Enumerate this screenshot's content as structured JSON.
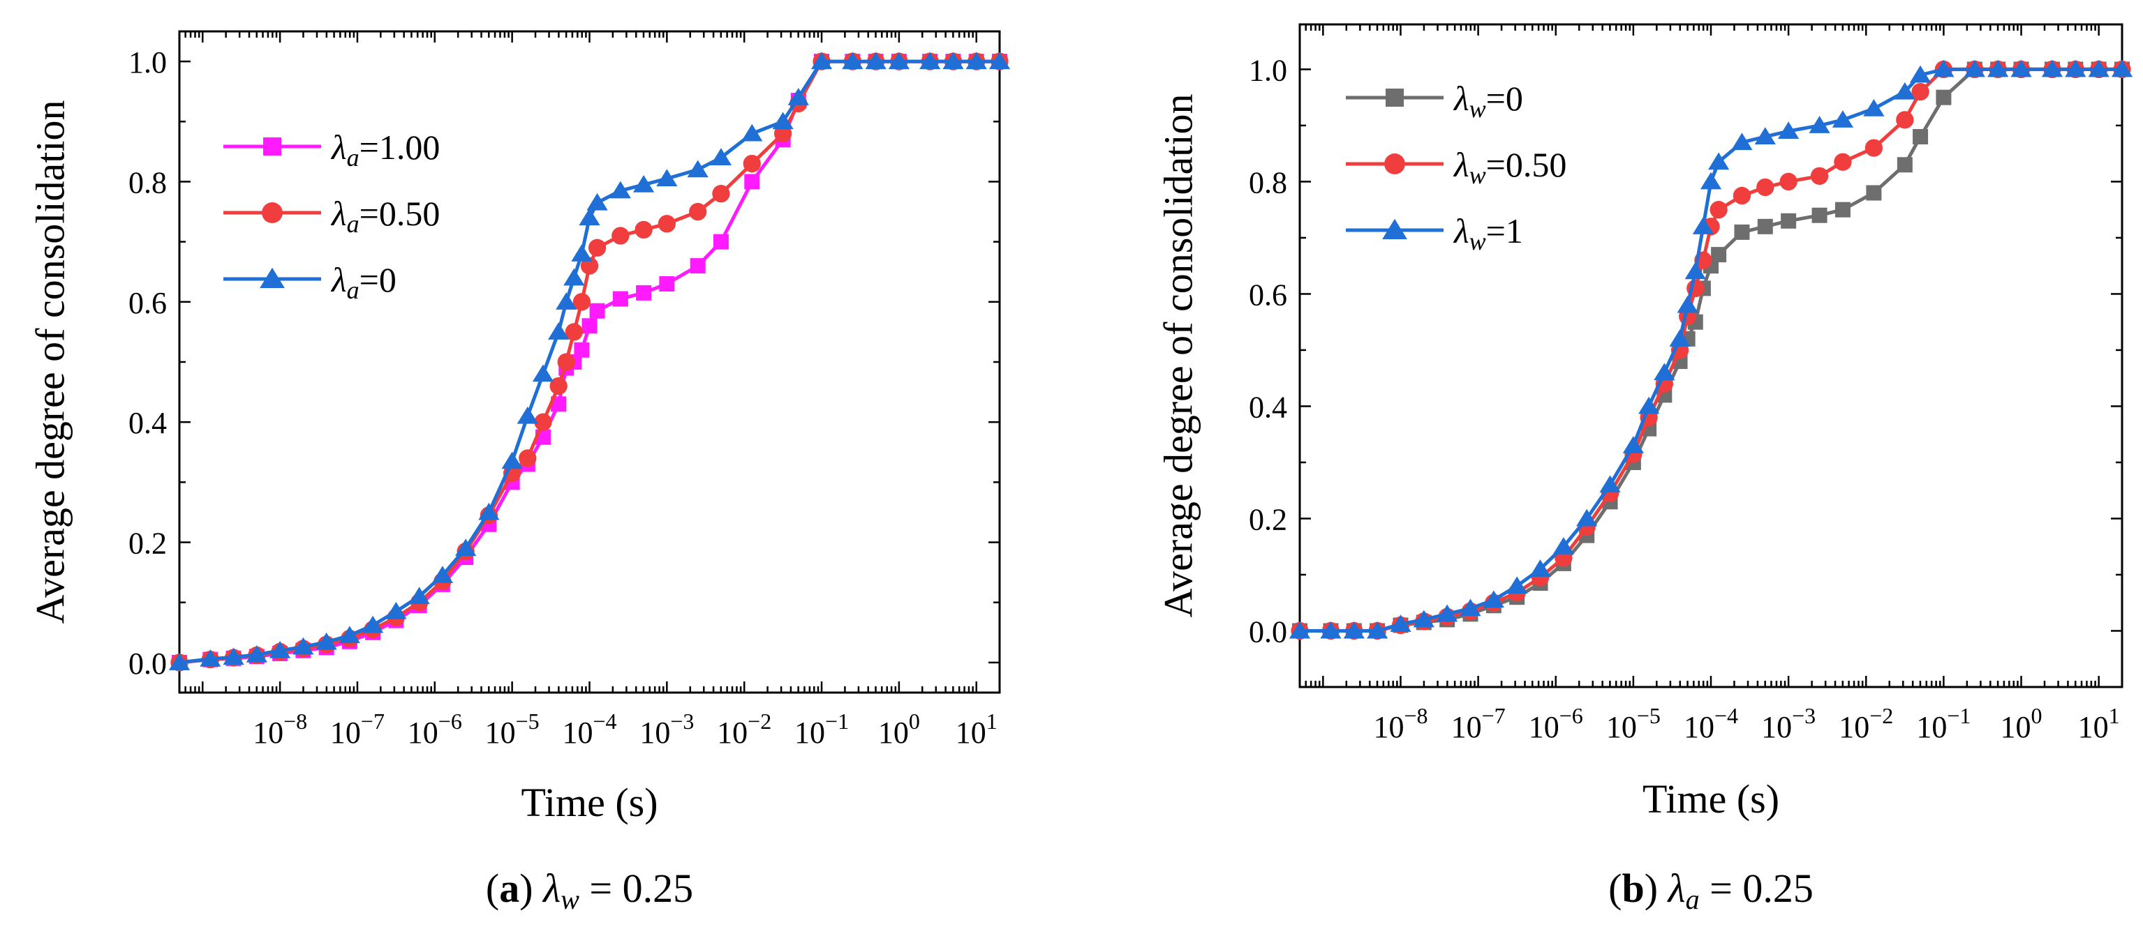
{
  "chart_data": [
    {
      "id": "a",
      "type": "line",
      "xscale": "log",
      "xlim": [
        -9.3,
        1.3
      ],
      "ylim": [
        -0.05,
        1.05
      ],
      "xlabel": "Time (s)",
      "ylabel": "Average degree of consolidation",
      "xtick_exponents": [
        -8,
        -7,
        -6,
        -5,
        -4,
        -3,
        -2,
        -1,
        0,
        1
      ],
      "yticks": [
        "0.0",
        "0.2",
        "0.4",
        "0.6",
        "0.8",
        "1.0"
      ],
      "caption": {
        "letter": "(a)",
        "param_symbol": "λ",
        "param_sub": "w",
        "param_value": "= 0.25"
      },
      "legend": {
        "position": "upper-left"
      },
      "series": [
        {
          "name": "λa=1.00",
          "sym": "λ",
          "sub": "a",
          "val": "=1.00",
          "color": "#ff1aff",
          "marker": "square",
          "log_x": [
            -9.3,
            -8.9,
            -8.6,
            -8.3,
            -8,
            -7.7,
            -7.4,
            -7.1,
            -6.8,
            -6.5,
            -6.2,
            -5.9,
            -5.6,
            -5.3,
            -5.0,
            -4.8,
            -4.6,
            -4.4,
            -4.3,
            -4.2,
            -4.1,
            -4.0,
            -3.9,
            -3.6,
            -3.3,
            -3.0,
            -2.6,
            -2.3,
            -1.9,
            -1.5,
            -1.3,
            -1.0,
            -0.6,
            -0.3,
            0,
            0.4,
            0.7,
            1.0,
            1.3
          ],
          "y": [
            0.0,
            0.005,
            0.007,
            0.01,
            0.015,
            0.02,
            0.025,
            0.035,
            0.05,
            0.07,
            0.095,
            0.13,
            0.175,
            0.23,
            0.3,
            0.33,
            0.375,
            0.43,
            0.49,
            0.5,
            0.52,
            0.56,
            0.585,
            0.605,
            0.615,
            0.63,
            0.66,
            0.7,
            0.8,
            0.87,
            0.935,
            1.0,
            1.0,
            1.0,
            1.0,
            1.0,
            1.0,
            1.0,
            1.0
          ]
        },
        {
          "name": "λa=0.50",
          "sym": "λ",
          "sub": "a",
          "val": "=0.50",
          "color": "#f03e3e",
          "marker": "circle",
          "log_x": [
            -9.3,
            -8.9,
            -8.6,
            -8.3,
            -8,
            -7.7,
            -7.4,
            -7.1,
            -6.8,
            -6.5,
            -6.2,
            -5.9,
            -5.6,
            -5.3,
            -5.0,
            -4.8,
            -4.6,
            -4.4,
            -4.3,
            -4.2,
            -4.1,
            -4.0,
            -3.9,
            -3.6,
            -3.3,
            -3.0,
            -2.6,
            -2.3,
            -1.9,
            -1.5,
            -1.3,
            -1.0,
            -0.6,
            -0.3,
            0,
            0.4,
            0.7,
            1.0,
            1.3
          ],
          "y": [
            0.0,
            0.005,
            0.008,
            0.012,
            0.018,
            0.023,
            0.03,
            0.04,
            0.055,
            0.075,
            0.1,
            0.135,
            0.185,
            0.245,
            0.315,
            0.34,
            0.4,
            0.46,
            0.5,
            0.55,
            0.6,
            0.66,
            0.69,
            0.71,
            0.72,
            0.73,
            0.75,
            0.78,
            0.83,
            0.88,
            0.93,
            1.0,
            1.0,
            1.0,
            1.0,
            1.0,
            1.0,
            1.0,
            1.0
          ]
        },
        {
          "name": "λa=0",
          "sym": "λ",
          "sub": "a",
          "val": "=0",
          "color": "#1f6fd6",
          "marker": "triangle",
          "log_x": [
            -9.3,
            -8.9,
            -8.6,
            -8.3,
            -8,
            -7.7,
            -7.4,
            -7.1,
            -6.8,
            -6.5,
            -6.2,
            -5.9,
            -5.6,
            -5.3,
            -5.0,
            -4.8,
            -4.6,
            -4.4,
            -4.3,
            -4.2,
            -4.1,
            -4.0,
            -3.9,
            -3.6,
            -3.3,
            -3.0,
            -2.6,
            -2.3,
            -1.9,
            -1.5,
            -1.3,
            -1.0,
            -0.6,
            -0.3,
            0,
            0.4,
            0.7,
            1.0,
            1.3
          ],
          "y": [
            0.0,
            0.006,
            0.009,
            0.013,
            0.02,
            0.026,
            0.034,
            0.045,
            0.062,
            0.085,
            0.11,
            0.145,
            0.19,
            0.25,
            0.335,
            0.41,
            0.48,
            0.55,
            0.6,
            0.64,
            0.68,
            0.74,
            0.765,
            0.785,
            0.795,
            0.805,
            0.82,
            0.84,
            0.88,
            0.9,
            0.94,
            1.0,
            1.0,
            1.0,
            1.0,
            1.0,
            1.0,
            1.0,
            1.0
          ]
        }
      ]
    },
    {
      "id": "b",
      "type": "line",
      "xscale": "log",
      "xlim": [
        -9.3,
        1.3
      ],
      "ylim": [
        -0.1,
        1.08
      ],
      "xlabel": "Time (s)",
      "ylabel": "Average degree of consolidation",
      "xtick_exponents": [
        -8,
        -7,
        -6,
        -5,
        -4,
        -3,
        -2,
        -1,
        0,
        1
      ],
      "yticks": [
        "0.0",
        "0.2",
        "0.4",
        "0.6",
        "0.8",
        "1.0"
      ],
      "caption": {
        "letter": "(b)",
        "param_symbol": "λ",
        "param_sub": "a",
        "param_value": "= 0.25"
      },
      "legend": {
        "position": "upper-left"
      },
      "series": [
        {
          "name": "λw=0",
          "sym": "λ",
          "sub": "w",
          "val": "=0",
          "color": "#6e6e6e",
          "marker": "square",
          "log_x": [
            -9.3,
            -8.9,
            -8.6,
            -8.3,
            -8,
            -7.7,
            -7.4,
            -7.1,
            -6.8,
            -6.5,
            -6.2,
            -5.9,
            -5.6,
            -5.3,
            -5.0,
            -4.8,
            -4.6,
            -4.4,
            -4.3,
            -4.2,
            -4.1,
            -4.0,
            -3.9,
            -3.6,
            -3.3,
            -3.0,
            -2.6,
            -2.3,
            -1.9,
            -1.5,
            -1.3,
            -1.0,
            -0.6,
            -0.3,
            0,
            0.4,
            0.7,
            1.0,
            1.3
          ],
          "y": [
            0.0,
            0.0,
            0.0,
            0.0,
            0.01,
            0.015,
            0.02,
            0.03,
            0.045,
            0.06,
            0.085,
            0.12,
            0.17,
            0.23,
            0.3,
            0.36,
            0.42,
            0.48,
            0.52,
            0.55,
            0.61,
            0.65,
            0.67,
            0.71,
            0.72,
            0.73,
            0.74,
            0.75,
            0.78,
            0.83,
            0.88,
            0.95,
            1.0,
            1.0,
            1.0,
            1.0,
            1.0,
            1.0,
            1.0
          ]
        },
        {
          "name": "λw=0.50",
          "sym": "λ",
          "sub": "w",
          "val": "=0.50",
          "color": "#f03e3e",
          "marker": "circle",
          "log_x": [
            -9.3,
            -8.9,
            -8.6,
            -8.3,
            -8,
            -7.7,
            -7.4,
            -7.1,
            -6.8,
            -6.5,
            -6.2,
            -5.9,
            -5.6,
            -5.3,
            -5.0,
            -4.8,
            -4.6,
            -4.4,
            -4.3,
            -4.2,
            -4.1,
            -4.0,
            -3.9,
            -3.6,
            -3.3,
            -3.0,
            -2.6,
            -2.3,
            -1.9,
            -1.5,
            -1.3,
            -1.0,
            -0.6,
            -0.3,
            0,
            0.4,
            0.7,
            1.0,
            1.3
          ],
          "y": [
            0.0,
            0.0,
            0.0,
            0.0,
            0.01,
            0.017,
            0.025,
            0.035,
            0.05,
            0.068,
            0.095,
            0.13,
            0.185,
            0.245,
            0.315,
            0.38,
            0.44,
            0.5,
            0.56,
            0.61,
            0.66,
            0.72,
            0.75,
            0.775,
            0.79,
            0.8,
            0.81,
            0.835,
            0.86,
            0.91,
            0.96,
            1.0,
            1.0,
            1.0,
            1.0,
            1.0,
            1.0,
            1.0,
            1.0
          ]
        },
        {
          "name": "λw=1",
          "sym": "λ",
          "sub": "w",
          "val": "=1",
          "color": "#1f6fd6",
          "marker": "triangle",
          "log_x": [
            -9.3,
            -8.9,
            -8.6,
            -8.3,
            -8,
            -7.7,
            -7.4,
            -7.1,
            -6.8,
            -6.5,
            -6.2,
            -5.9,
            -5.6,
            -5.3,
            -5.0,
            -4.8,
            -4.6,
            -4.4,
            -4.3,
            -4.2,
            -4.1,
            -4.0,
            -3.9,
            -3.6,
            -3.3,
            -3.0,
            -2.6,
            -2.3,
            -1.9,
            -1.5,
            -1.3,
            -1.0,
            -0.6,
            -0.3,
            0,
            0.4,
            0.7,
            1.0,
            1.3
          ],
          "y": [
            0.0,
            0.0,
            0.0,
            0.0,
            0.012,
            0.02,
            0.03,
            0.04,
            0.055,
            0.08,
            0.11,
            0.15,
            0.2,
            0.26,
            0.33,
            0.4,
            0.46,
            0.52,
            0.58,
            0.64,
            0.72,
            0.8,
            0.835,
            0.87,
            0.88,
            0.89,
            0.9,
            0.91,
            0.93,
            0.96,
            0.99,
            1.0,
            1.0,
            1.0,
            1.0,
            1.0,
            1.0,
            1.0,
            1.0
          ]
        }
      ]
    }
  ]
}
